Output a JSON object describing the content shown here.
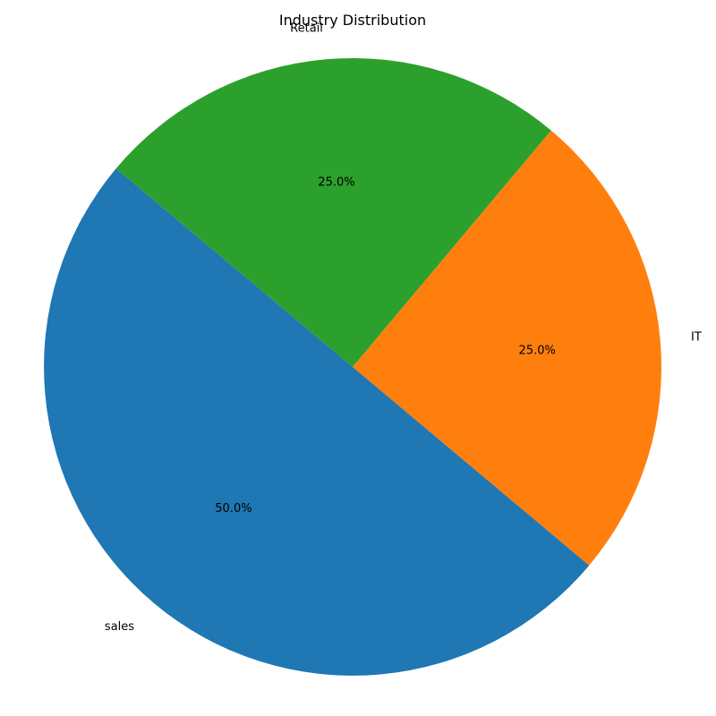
{
  "chart_data": {
    "type": "pie",
    "title": "Industry Distribution",
    "categories": [
      "sales",
      "IT",
      "Retail"
    ],
    "values": [
      50.0,
      25.0,
      25.0
    ],
    "percent_labels": [
      "50.0%",
      "25.0%",
      "25.0%"
    ],
    "colors": [
      "#1f77b4",
      "#ff7f0e",
      "#2ca02c"
    ],
    "start_angle_deg": 140,
    "direction": "counterclockwise",
    "legend": "none"
  }
}
